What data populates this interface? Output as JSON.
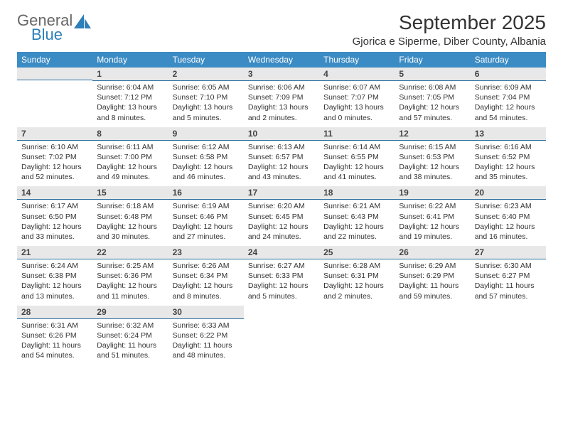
{
  "logo": {
    "text1": "General",
    "text2": "Blue"
  },
  "title": "September 2025",
  "location": "Gjorica e Siperme, Diber County, Albania",
  "colors": {
    "header_bg": "#3b8bc4",
    "header_text": "#ffffff",
    "daynum_bg": "#e8e8e8",
    "daynum_border": "#2a6fa0",
    "body_text": "#333333"
  },
  "day_names": [
    "Sunday",
    "Monday",
    "Tuesday",
    "Wednesday",
    "Thursday",
    "Friday",
    "Saturday"
  ],
  "weeks": [
    [
      {
        "n": "",
        "sr": "",
        "ss": "",
        "dl": ""
      },
      {
        "n": "1",
        "sr": "Sunrise: 6:04 AM",
        "ss": "Sunset: 7:12 PM",
        "dl": "Daylight: 13 hours and 8 minutes."
      },
      {
        "n": "2",
        "sr": "Sunrise: 6:05 AM",
        "ss": "Sunset: 7:10 PM",
        "dl": "Daylight: 13 hours and 5 minutes."
      },
      {
        "n": "3",
        "sr": "Sunrise: 6:06 AM",
        "ss": "Sunset: 7:09 PM",
        "dl": "Daylight: 13 hours and 2 minutes."
      },
      {
        "n": "4",
        "sr": "Sunrise: 6:07 AM",
        "ss": "Sunset: 7:07 PM",
        "dl": "Daylight: 13 hours and 0 minutes."
      },
      {
        "n": "5",
        "sr": "Sunrise: 6:08 AM",
        "ss": "Sunset: 7:05 PM",
        "dl": "Daylight: 12 hours and 57 minutes."
      },
      {
        "n": "6",
        "sr": "Sunrise: 6:09 AM",
        "ss": "Sunset: 7:04 PM",
        "dl": "Daylight: 12 hours and 54 minutes."
      }
    ],
    [
      {
        "n": "7",
        "sr": "Sunrise: 6:10 AM",
        "ss": "Sunset: 7:02 PM",
        "dl": "Daylight: 12 hours and 52 minutes."
      },
      {
        "n": "8",
        "sr": "Sunrise: 6:11 AM",
        "ss": "Sunset: 7:00 PM",
        "dl": "Daylight: 12 hours and 49 minutes."
      },
      {
        "n": "9",
        "sr": "Sunrise: 6:12 AM",
        "ss": "Sunset: 6:58 PM",
        "dl": "Daylight: 12 hours and 46 minutes."
      },
      {
        "n": "10",
        "sr": "Sunrise: 6:13 AM",
        "ss": "Sunset: 6:57 PM",
        "dl": "Daylight: 12 hours and 43 minutes."
      },
      {
        "n": "11",
        "sr": "Sunrise: 6:14 AM",
        "ss": "Sunset: 6:55 PM",
        "dl": "Daylight: 12 hours and 41 minutes."
      },
      {
        "n": "12",
        "sr": "Sunrise: 6:15 AM",
        "ss": "Sunset: 6:53 PM",
        "dl": "Daylight: 12 hours and 38 minutes."
      },
      {
        "n": "13",
        "sr": "Sunrise: 6:16 AM",
        "ss": "Sunset: 6:52 PM",
        "dl": "Daylight: 12 hours and 35 minutes."
      }
    ],
    [
      {
        "n": "14",
        "sr": "Sunrise: 6:17 AM",
        "ss": "Sunset: 6:50 PM",
        "dl": "Daylight: 12 hours and 33 minutes."
      },
      {
        "n": "15",
        "sr": "Sunrise: 6:18 AM",
        "ss": "Sunset: 6:48 PM",
        "dl": "Daylight: 12 hours and 30 minutes."
      },
      {
        "n": "16",
        "sr": "Sunrise: 6:19 AM",
        "ss": "Sunset: 6:46 PM",
        "dl": "Daylight: 12 hours and 27 minutes."
      },
      {
        "n": "17",
        "sr": "Sunrise: 6:20 AM",
        "ss": "Sunset: 6:45 PM",
        "dl": "Daylight: 12 hours and 24 minutes."
      },
      {
        "n": "18",
        "sr": "Sunrise: 6:21 AM",
        "ss": "Sunset: 6:43 PM",
        "dl": "Daylight: 12 hours and 22 minutes."
      },
      {
        "n": "19",
        "sr": "Sunrise: 6:22 AM",
        "ss": "Sunset: 6:41 PM",
        "dl": "Daylight: 12 hours and 19 minutes."
      },
      {
        "n": "20",
        "sr": "Sunrise: 6:23 AM",
        "ss": "Sunset: 6:40 PM",
        "dl": "Daylight: 12 hours and 16 minutes."
      }
    ],
    [
      {
        "n": "21",
        "sr": "Sunrise: 6:24 AM",
        "ss": "Sunset: 6:38 PM",
        "dl": "Daylight: 12 hours and 13 minutes."
      },
      {
        "n": "22",
        "sr": "Sunrise: 6:25 AM",
        "ss": "Sunset: 6:36 PM",
        "dl": "Daylight: 12 hours and 11 minutes."
      },
      {
        "n": "23",
        "sr": "Sunrise: 6:26 AM",
        "ss": "Sunset: 6:34 PM",
        "dl": "Daylight: 12 hours and 8 minutes."
      },
      {
        "n": "24",
        "sr": "Sunrise: 6:27 AM",
        "ss": "Sunset: 6:33 PM",
        "dl": "Daylight: 12 hours and 5 minutes."
      },
      {
        "n": "25",
        "sr": "Sunrise: 6:28 AM",
        "ss": "Sunset: 6:31 PM",
        "dl": "Daylight: 12 hours and 2 minutes."
      },
      {
        "n": "26",
        "sr": "Sunrise: 6:29 AM",
        "ss": "Sunset: 6:29 PM",
        "dl": "Daylight: 11 hours and 59 minutes."
      },
      {
        "n": "27",
        "sr": "Sunrise: 6:30 AM",
        "ss": "Sunset: 6:27 PM",
        "dl": "Daylight: 11 hours and 57 minutes."
      }
    ],
    [
      {
        "n": "28",
        "sr": "Sunrise: 6:31 AM",
        "ss": "Sunset: 6:26 PM",
        "dl": "Daylight: 11 hours and 54 minutes."
      },
      {
        "n": "29",
        "sr": "Sunrise: 6:32 AM",
        "ss": "Sunset: 6:24 PM",
        "dl": "Daylight: 11 hours and 51 minutes."
      },
      {
        "n": "30",
        "sr": "Sunrise: 6:33 AM",
        "ss": "Sunset: 6:22 PM",
        "dl": "Daylight: 11 hours and 48 minutes."
      },
      {
        "n": "",
        "sr": "",
        "ss": "",
        "dl": ""
      },
      {
        "n": "",
        "sr": "",
        "ss": "",
        "dl": ""
      },
      {
        "n": "",
        "sr": "",
        "ss": "",
        "dl": ""
      },
      {
        "n": "",
        "sr": "",
        "ss": "",
        "dl": ""
      }
    ]
  ]
}
